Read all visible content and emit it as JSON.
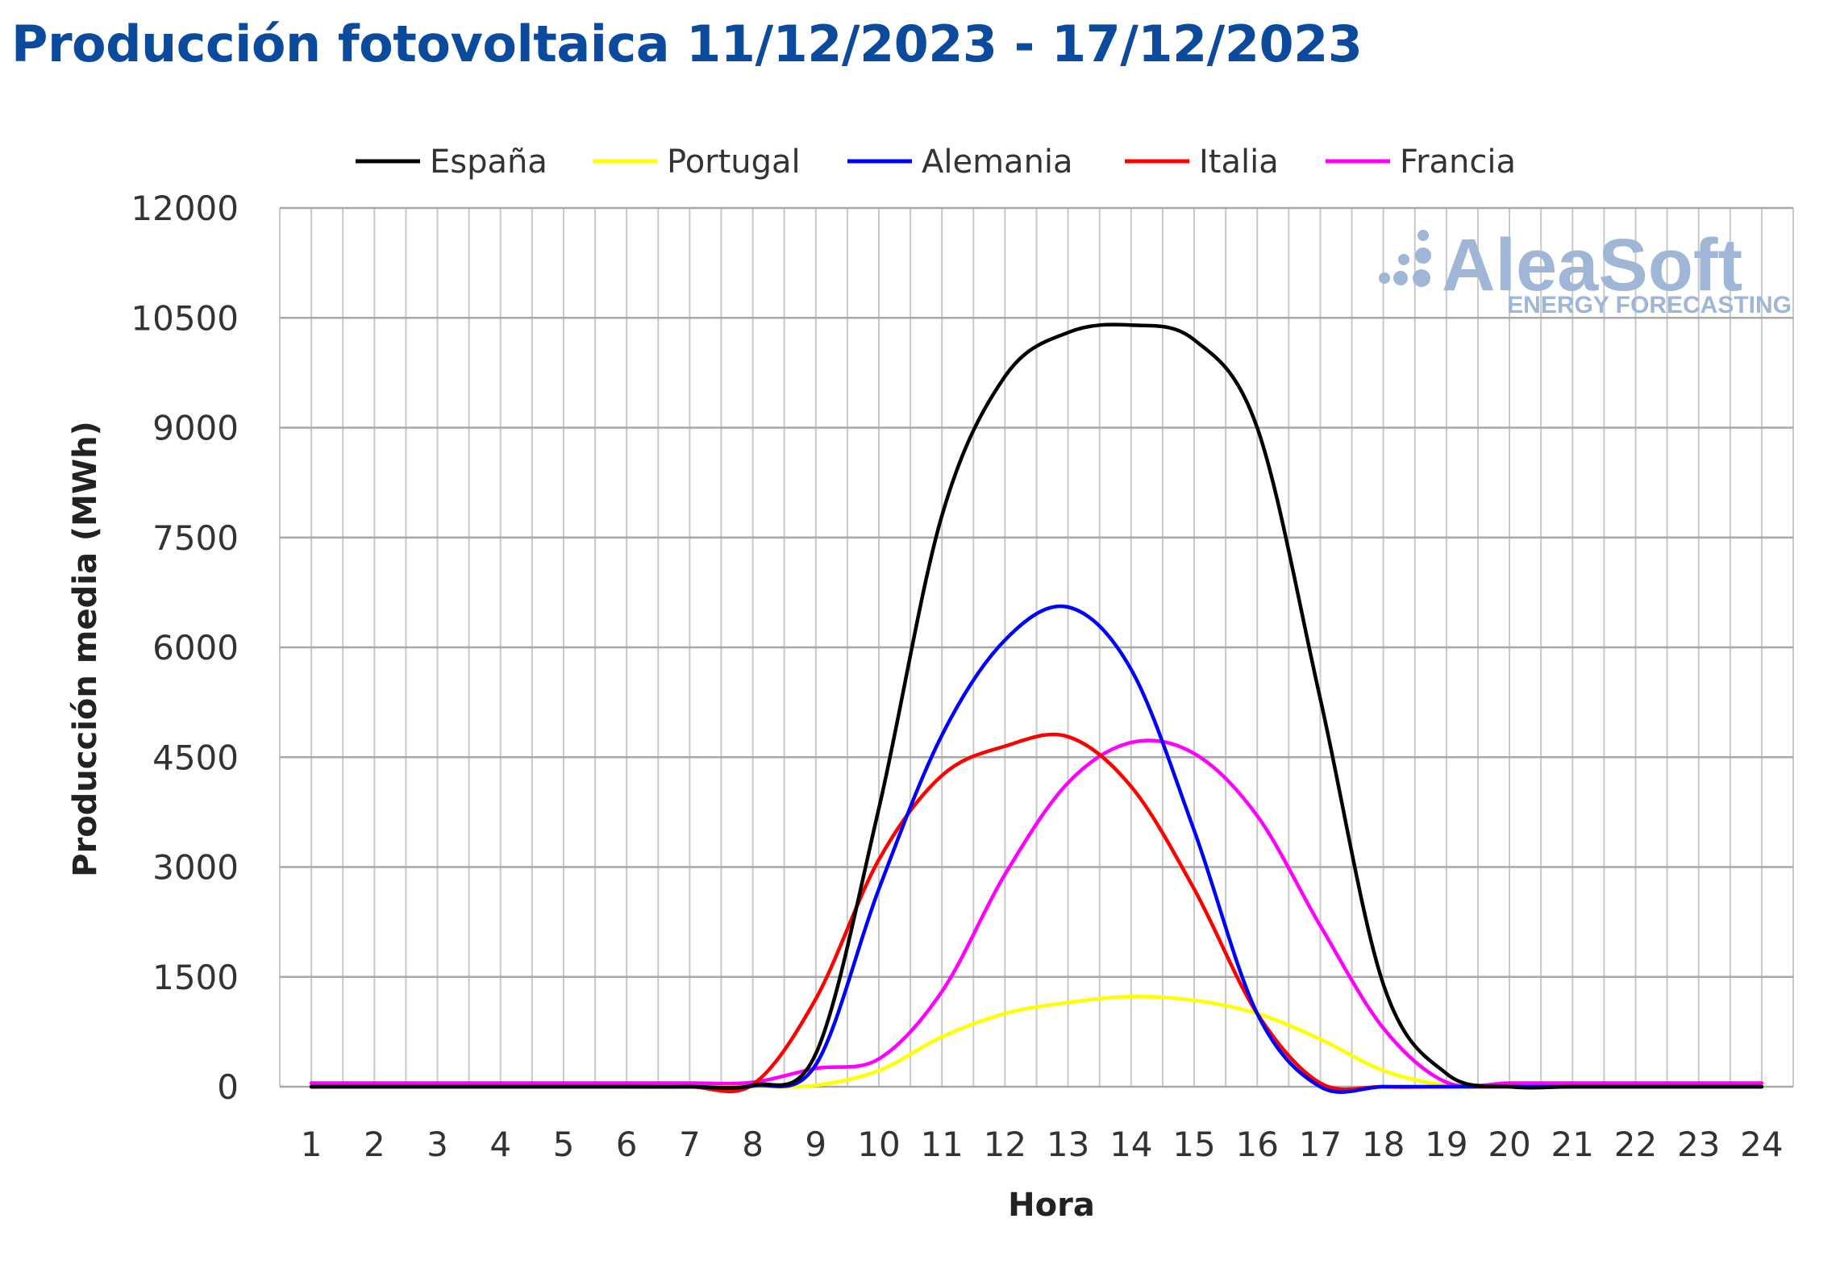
{
  "title": "Producción fotovoltaica 11/12/2023 - 17/12/2023",
  "watermark": {
    "brand": "AleaSoft",
    "tagline": "ENERGY FORECASTING"
  },
  "chart_data": {
    "type": "line",
    "title": "Producción fotovoltaica 11/12/2023 - 17/12/2023",
    "xlabel": "Hora",
    "ylabel": "Producción media (MWh)",
    "ylim": [
      0,
      12000
    ],
    "yticks": [
      0,
      1500,
      3000,
      4500,
      6000,
      7500,
      9000,
      10500,
      12000
    ],
    "x": [
      1,
      2,
      3,
      4,
      5,
      6,
      7,
      8,
      9,
      10,
      11,
      12,
      13,
      14,
      15,
      16,
      17,
      18,
      19,
      20,
      21,
      22,
      23,
      24
    ],
    "grid": true,
    "legend_position": "top",
    "series": [
      {
        "name": "España",
        "color": "#000000",
        "values": [
          0,
          0,
          0,
          0,
          0,
          0,
          0,
          20,
          450,
          3800,
          7800,
          9700,
          10300,
          10400,
          10200,
          9000,
          5300,
          1400,
          180,
          0,
          0,
          0,
          0,
          0
        ]
      },
      {
        "name": "Portugal",
        "color": "#ffff00",
        "values": [
          0,
          0,
          0,
          0,
          0,
          0,
          0,
          0,
          20,
          220,
          680,
          1000,
          1150,
          1230,
          1180,
          1000,
          650,
          220,
          20,
          0,
          0,
          0,
          0,
          0
        ]
      },
      {
        "name": "Alemania",
        "color": "#0000ff",
        "values": [
          0,
          0,
          0,
          0,
          0,
          0,
          0,
          10,
          300,
          2700,
          4800,
          6100,
          6550,
          5700,
          3500,
          1000,
          0,
          0,
          0,
          0,
          0,
          0,
          0,
          0
        ]
      },
      {
        "name": "Italia",
        "color": "#ff0000",
        "values": [
          0,
          0,
          0,
          0,
          0,
          0,
          0,
          30,
          1200,
          3100,
          4250,
          4650,
          4780,
          4100,
          2700,
          1000,
          50,
          0,
          0,
          0,
          0,
          0,
          0,
          0
        ]
      },
      {
        "name": "Francia",
        "color": "#ff00ff",
        "values": [
          50,
          50,
          50,
          50,
          50,
          50,
          50,
          60,
          250,
          380,
          1300,
          2900,
          4150,
          4700,
          4550,
          3700,
          2200,
          800,
          60,
          50,
          50,
          50,
          50,
          50
        ]
      }
    ]
  }
}
